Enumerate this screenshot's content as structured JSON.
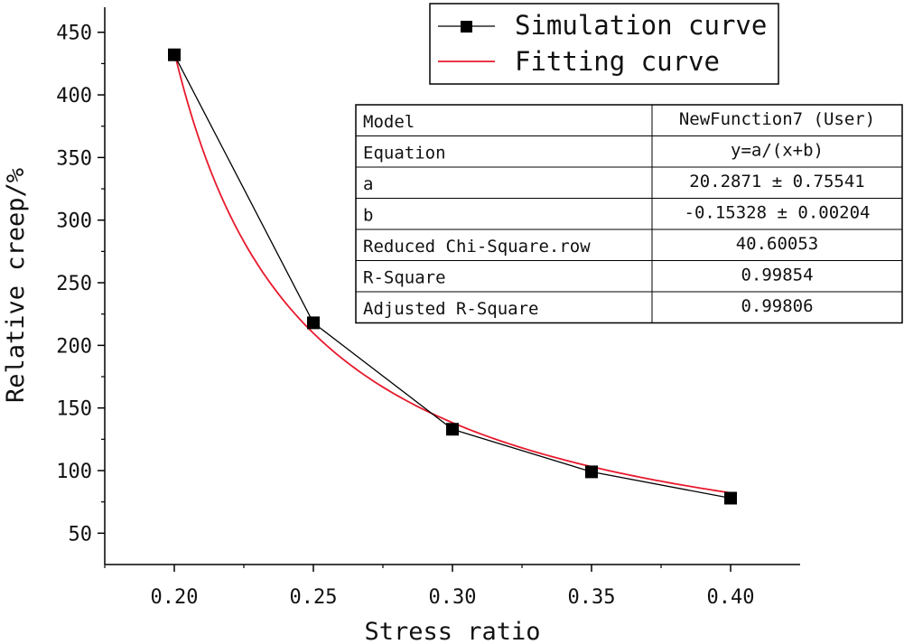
{
  "chart_data": {
    "type": "line",
    "title": "",
    "xlabel": "Stress ratio",
    "ylabel": "Relative creep/%",
    "xlim": [
      0.175,
      0.425
    ],
    "ylim": [
      25,
      470
    ],
    "xticks": [
      0.2,
      0.25,
      0.3,
      0.35,
      0.4
    ],
    "xtick_labels": [
      "0.20",
      "0.25",
      "0.30",
      "0.35",
      "0.40"
    ],
    "yticks": [
      50,
      100,
      150,
      200,
      250,
      300,
      350,
      400,
      450
    ],
    "ytick_labels": [
      "50",
      "100",
      "150",
      "200",
      "250",
      "300",
      "350",
      "400",
      "450"
    ],
    "grid": false,
    "legend_position": "top-right",
    "series": [
      {
        "name": "Simulation curve",
        "color": "#000000",
        "marker": "square",
        "x": [
          0.2,
          0.25,
          0.3,
          0.35,
          0.4
        ],
        "values": [
          432,
          218,
          133,
          99,
          78
        ]
      },
      {
        "name": "Fitting curve",
        "color": "#e8192c",
        "marker": "none",
        "function": "y=a/(x+b)",
        "a": 20.2871,
        "b": -0.15328,
        "x_range": [
          0.2,
          0.4
        ]
      }
    ],
    "fit_table": [
      [
        "Model",
        "NewFunction7 (User)"
      ],
      [
        "Equation",
        "y=a/(x+b)"
      ],
      [
        "a",
        "20.2871 ± 0.75541"
      ],
      [
        "b",
        "-0.15328 ± 0.00204"
      ],
      [
        "Reduced Chi-Square.row",
        "40.60053"
      ],
      [
        "R-Square",
        "0.99854"
      ],
      [
        "Adjusted R-Square",
        "0.99806"
      ]
    ]
  }
}
